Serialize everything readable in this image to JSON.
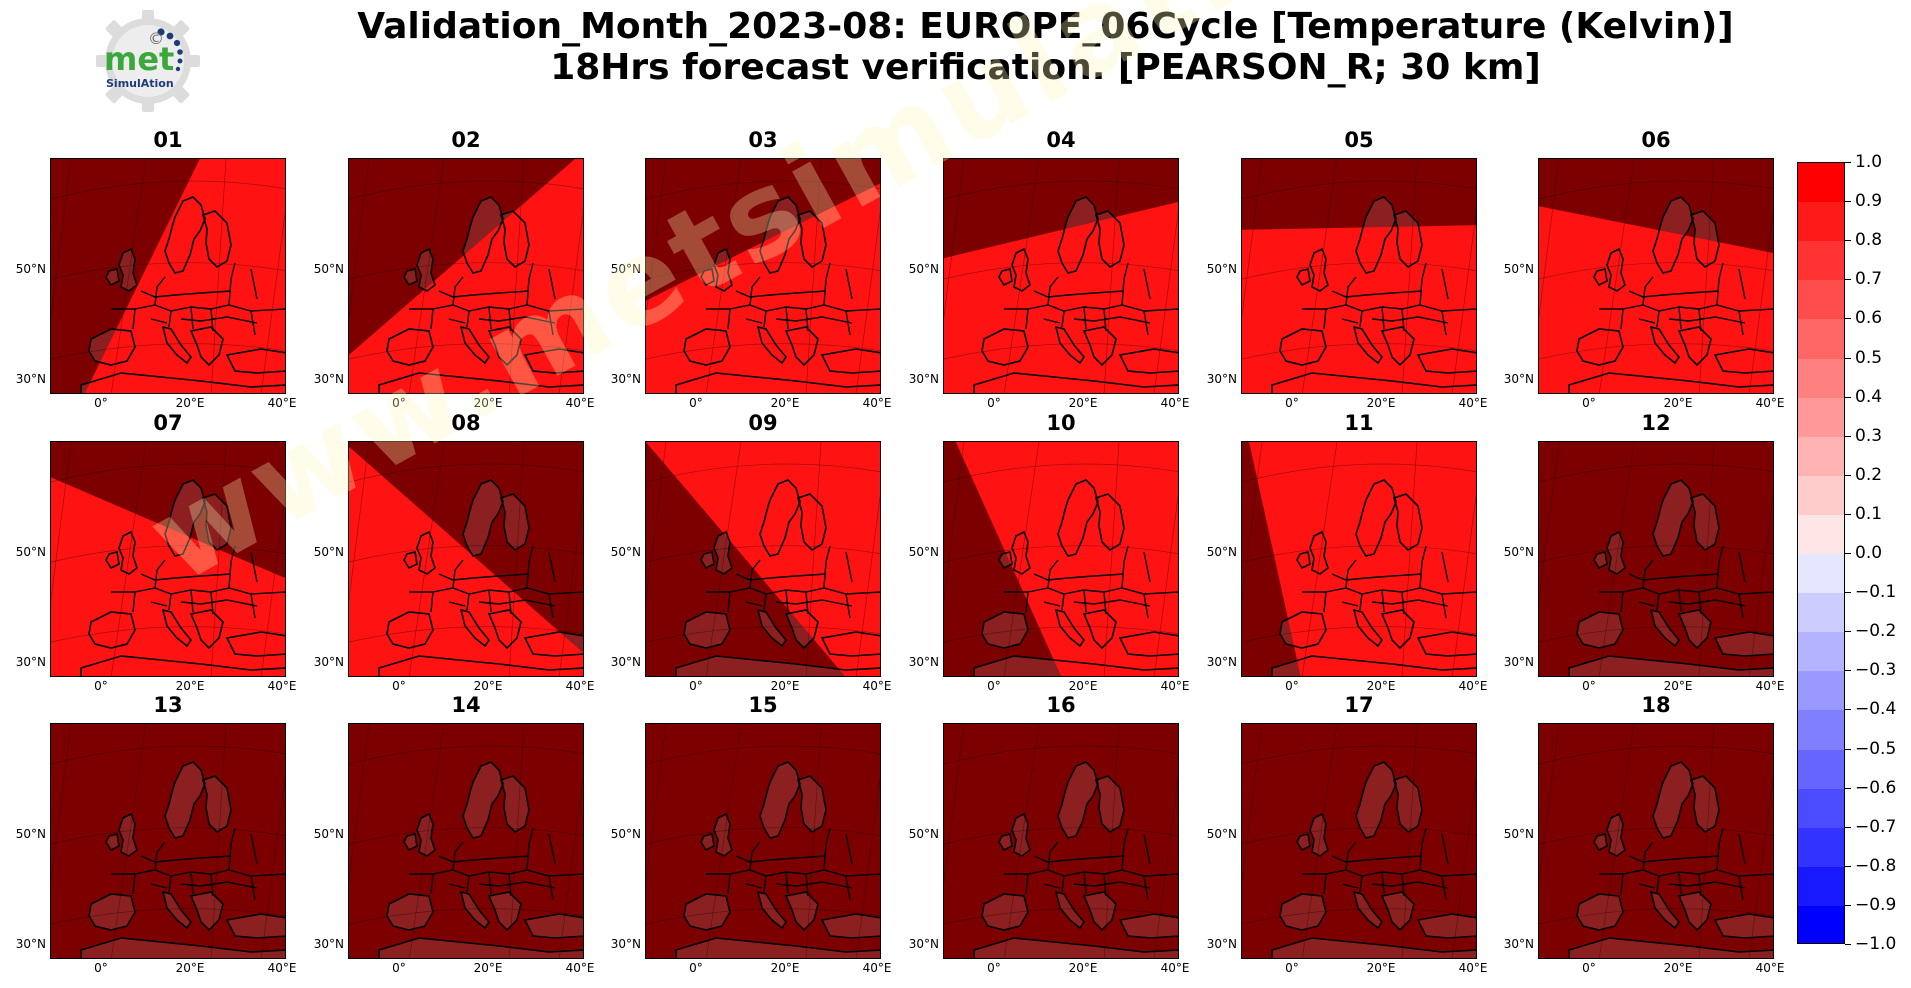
{
  "title": {
    "line1": "Validation_Month_2023-08: EUROPE_06Cycle [Temperature (Kelvin)]",
    "line2": "18Hrs forecast verification.  [PEARSON_R; 30 km]"
  },
  "logo": {
    "icon": "gear-logo-icon",
    "word1": "met",
    "word2": "SimulAtion",
    "mark": "©"
  },
  "watermark": "www.metsimulation.com",
  "map_axes": {
    "lat_labels": [
      "50°N",
      "30°N"
    ],
    "lon_labels": [
      "0°",
      "20°E",
      "40°E"
    ]
  },
  "panels": [
    {
      "label": "01",
      "swath": "high",
      "boundary": [
        [
          0.63,
          0
        ],
        [
          0.14,
          1
        ]
      ]
    },
    {
      "label": "02",
      "swath": "high",
      "boundary": [
        [
          0.9,
          0.05
        ],
        [
          0,
          0.83
        ]
      ]
    },
    {
      "label": "03",
      "swath": "high",
      "boundary": [
        [
          1,
          0.1
        ],
        [
          0,
          0.6
        ]
      ]
    },
    {
      "label": "04",
      "swath": "high",
      "boundary": [
        [
          1,
          0.18
        ],
        [
          0,
          0.42
        ]
      ]
    },
    {
      "label": "05",
      "swath": "high",
      "boundary": [
        [
          1,
          0.28
        ],
        [
          0,
          0.3
        ]
      ]
    },
    {
      "label": "06",
      "swath": "high",
      "boundary": [
        [
          1,
          0.4
        ],
        [
          0,
          0.2
        ]
      ]
    },
    {
      "label": "07",
      "swath": "high",
      "boundary": [
        [
          1,
          0.58
        ],
        [
          0,
          0.15
        ]
      ]
    },
    {
      "label": "08",
      "swath": "high",
      "boundary": [
        [
          1,
          0.9
        ],
        [
          0,
          0.02
        ]
      ]
    },
    {
      "label": "09",
      "swath": "high",
      "boundary": [
        [
          0.85,
          1
        ],
        [
          0,
          0.0
        ]
      ]
    },
    {
      "label": "10",
      "swath": "high",
      "boundary": [
        [
          0.5,
          1
        ],
        [
          0.05,
          0.0
        ]
      ]
    },
    {
      "label": "11",
      "swath": "high",
      "boundary": [
        [
          0.25,
          1
        ],
        [
          0.03,
          0.0
        ]
      ]
    },
    {
      "label": "12",
      "swath": "none"
    },
    {
      "label": "13",
      "swath": "none"
    },
    {
      "label": "14",
      "swath": "none"
    },
    {
      "label": "15",
      "swath": "none"
    },
    {
      "label": "16",
      "swath": "none"
    },
    {
      "label": "17",
      "swath": "none"
    },
    {
      "label": "18",
      "swath": "none"
    }
  ],
  "colorbar": {
    "ticks": [
      "1.0",
      "0.9",
      "0.8",
      "0.7",
      "0.6",
      "0.5",
      "0.4",
      "0.3",
      "0.2",
      "0.1",
      "0.0",
      "−0.1",
      "−0.2",
      "−0.3",
      "−0.4",
      "−0.5",
      "−0.6",
      "−0.7",
      "−0.8",
      "−0.9",
      "−1.0"
    ],
    "min": -1.0,
    "max": 1.0,
    "step": 0.1,
    "high_color": "#ff0000",
    "mid_color": "#ffffff",
    "low_color": "#0000ff"
  },
  "colors": {
    "background_field": "#7d0000",
    "swath_field": "#ff1212",
    "swath_land": "#f36a6a",
    "background_land": "#8c2020",
    "coast": "#000000"
  }
}
